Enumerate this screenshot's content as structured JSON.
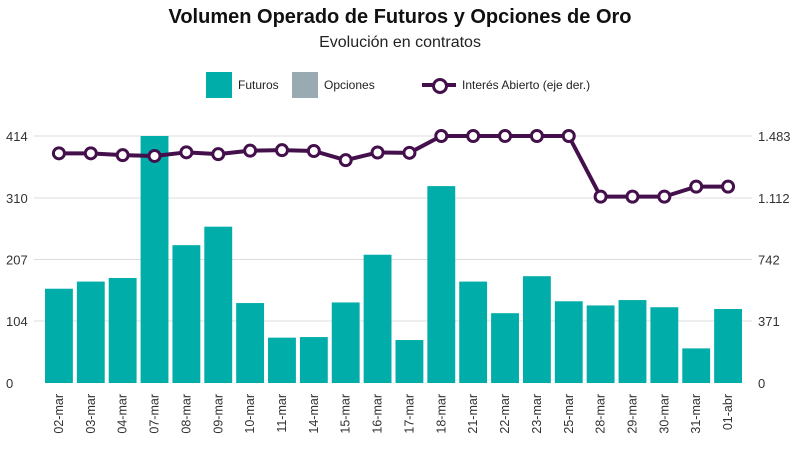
{
  "chart_data": {
    "type": "bar",
    "title": "Volumen Operado de Futuros y Opciones de Oro",
    "subtitle": "Evolución en contratos",
    "categories": [
      "02-mar",
      "03-mar",
      "04-mar",
      "07-mar",
      "08-mar",
      "09-mar",
      "10-mar",
      "11-mar",
      "14-mar",
      "15-mar",
      "16-mar",
      "17-mar",
      "18-mar",
      "21-mar",
      "22-mar",
      "23-mar",
      "25-mar",
      "28-mar",
      "29-mar",
      "30-mar",
      "31-mar",
      "01-abr"
    ],
    "series": [
      {
        "name": "Futuros",
        "type": "bar",
        "axis": "left",
        "color": "#00ADA9",
        "values": [
          158,
          170,
          176,
          414,
          231,
          262,
          134,
          76,
          77,
          135,
          215,
          72,
          330,
          170,
          117,
          179,
          137,
          130,
          139,
          127,
          58,
          124
        ]
      },
      {
        "name": "Opciones",
        "type": "bar",
        "axis": "left",
        "color": "#9AAAB3",
        "values": [
          0,
          0,
          0,
          0,
          0,
          0,
          0,
          0,
          0,
          0,
          0,
          0,
          0,
          0,
          0,
          0,
          0,
          0,
          0,
          0,
          0,
          0
        ]
      },
      {
        "name": "Interés Abierto (eje der.)",
        "type": "line",
        "axis": "right",
        "color": "#44104C",
        "values": [
          1379,
          1379,
          1368,
          1363,
          1385,
          1374,
          1395,
          1398,
          1393,
          1338,
          1384,
          1382,
          1483,
          1483,
          1483,
          1483,
          1483,
          1119,
          1119,
          1119,
          1179,
          1179
        ]
      }
    ],
    "y_left": {
      "ticks": [
        0,
        104,
        207,
        310,
        414
      ],
      "labels": [
        "0",
        "104",
        "207",
        "310",
        "414"
      ],
      "range": [
        0,
        414
      ]
    },
    "y_right": {
      "ticks": [
        0,
        371,
        742,
        1112,
        1483
      ],
      "labels": [
        "0",
        "371",
        "742",
        "1.112",
        "1.483"
      ],
      "range": [
        0,
        1483
      ]
    },
    "grid": true,
    "legend_position": "top"
  }
}
